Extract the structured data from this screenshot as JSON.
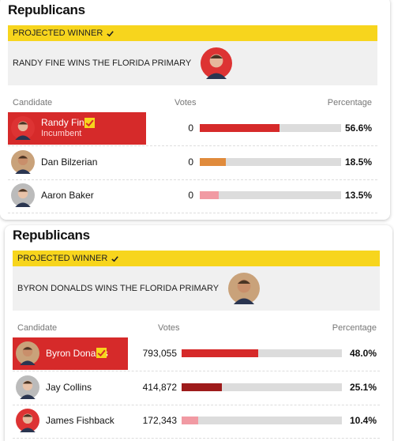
{
  "cards": [
    {
      "title": "Republicans",
      "winner_label": "PROJECTED WINNER",
      "headline": "RANDY FINE WINS THE FLORIDA PRIMARY",
      "columns": [
        "Candidate",
        "Votes",
        "Percentage"
      ],
      "rows": [
        {
          "name": "Randy Fine",
          "note": "Incumbent",
          "votes": "0",
          "percentage": {
            "value": 56.6,
            "label": "56.6%"
          },
          "color": "#d62a2a",
          "winner": true
        },
        {
          "name": "Dan Bilzerian",
          "votes": "0",
          "percentage": {
            "value": 18.5,
            "label": "18.5%"
          },
          "color": "#e08b3c"
        },
        {
          "name": "Aaron Baker",
          "votes": "0",
          "percentage": {
            "value": 13.5,
            "label": "13.5%"
          },
          "color": "#f19aa3"
        }
      ]
    },
    {
      "title": "Republicans",
      "winner_label": "PROJECTED WINNER",
      "headline": "BYRON DONALDS WINS THE FLORIDA PRIMARY",
      "columns": [
        "Candidate",
        "Votes",
        "Percentage"
      ],
      "rows": [
        {
          "name": "Byron Donalds",
          "votes": "793,055",
          "percentage": {
            "value": 48.0,
            "label": "48.0%"
          },
          "color": "#d62a2a",
          "winner": true
        },
        {
          "name": "Jay Collins",
          "votes": "414,872",
          "percentage": {
            "value": 25.1,
            "label": "25.1%"
          },
          "color": "#9e1b1b"
        },
        {
          "name": "James Fishback",
          "votes": "172,343",
          "percentage": {
            "value": 10.4,
            "label": "10.4%"
          },
          "color": "#f19aa3"
        }
      ]
    }
  ]
}
